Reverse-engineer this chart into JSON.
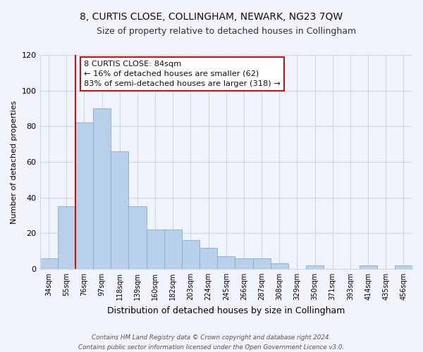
{
  "title": "8, CURTIS CLOSE, COLLINGHAM, NEWARK, NG23 7QW",
  "subtitle": "Size of property relative to detached houses in Collingham",
  "xlabel": "Distribution of detached houses by size in Collingham",
  "ylabel": "Number of detached properties",
  "footer_line1": "Contains HM Land Registry data © Crown copyright and database right 2024.",
  "footer_line2": "Contains public sector information licensed under the Open Government Licence v3.0.",
  "bar_labels": [
    "34sqm",
    "55sqm",
    "76sqm",
    "97sqm",
    "118sqm",
    "139sqm",
    "160sqm",
    "182sqm",
    "203sqm",
    "224sqm",
    "245sqm",
    "266sqm",
    "287sqm",
    "308sqm",
    "329sqm",
    "350sqm",
    "371sqm",
    "393sqm",
    "414sqm",
    "435sqm",
    "456sqm"
  ],
  "bar_values": [
    6,
    35,
    82,
    90,
    66,
    35,
    22,
    22,
    16,
    12,
    7,
    6,
    6,
    3,
    0,
    2,
    0,
    0,
    2,
    0,
    2
  ],
  "bar_color": "#b8d0ea",
  "bar_edge_color": "#7aafd4",
  "vline_x_index": 2,
  "vline_color": "#cc1111",
  "ylim": [
    0,
    120
  ],
  "yticks": [
    0,
    20,
    40,
    60,
    80,
    100,
    120
  ],
  "annotation_title": "8 CURTIS CLOSE: 84sqm",
  "annotation_line1": "← 16% of detached houses are smaller (62)",
  "annotation_line2": "83% of semi-detached houses are larger (318) →",
  "annotation_box_facecolor": "#ffffff",
  "annotation_box_edgecolor": "#cc1111",
  "background_color": "#f0f4fa",
  "grid_color": "#c8d8ec",
  "title_fontsize": 10,
  "subtitle_fontsize": 9,
  "ylabel_fontsize": 8,
  "xlabel_fontsize": 9
}
